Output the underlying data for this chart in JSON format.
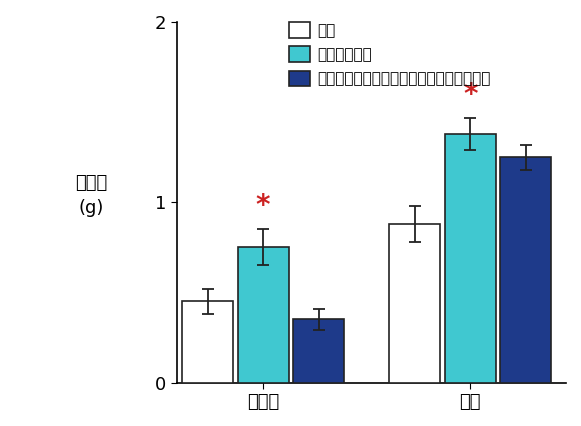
{
  "groups": [
    "ショ糖",
    "脂質"
  ],
  "series": [
    "対照",
    "レム睐眠減少",
    "レム睐眠減少＋前頭前皮質の神経活動鉴害"
  ],
  "values": [
    [
      0.45,
      0.75,
      0.35
    ],
    [
      0.88,
      1.38,
      1.25
    ]
  ],
  "errors": [
    [
      0.07,
      0.1,
      0.06
    ],
    [
      0.1,
      0.09,
      0.07
    ]
  ],
  "bar_colors": [
    "#ffffff",
    "#40c8d0",
    "#1e3a8a"
  ],
  "bar_edgecolors": [
    "#222222",
    "#222222",
    "#222222"
  ],
  "ylim": [
    0,
    2.0
  ],
  "yticks": [
    0,
    1,
    2
  ],
  "ylabel_lines": [
    "摂",
    "取",
    "量",
    "(g)"
  ],
  "legend_labels": [
    "対照",
    "レム睐眠減少",
    "レム睐眠減少＋前頭前皮質の神経活動鉴害"
  ],
  "legend_colors": [
    "#ffffff",
    "#40c8d0",
    "#1e3a8a"
  ],
  "legend_edgecolors": [
    "#222222",
    "#222222",
    "#222222"
  ],
  "bar_width": 0.18,
  "group_centers": [
    0.38,
    1.05
  ],
  "background_color": "#ffffff",
  "asterisk_color": "#cc2222",
  "asterisk_fontsize": 20,
  "axis_fontsize": 13,
  "legend_fontsize": 11,
  "tick_fontsize": 13
}
